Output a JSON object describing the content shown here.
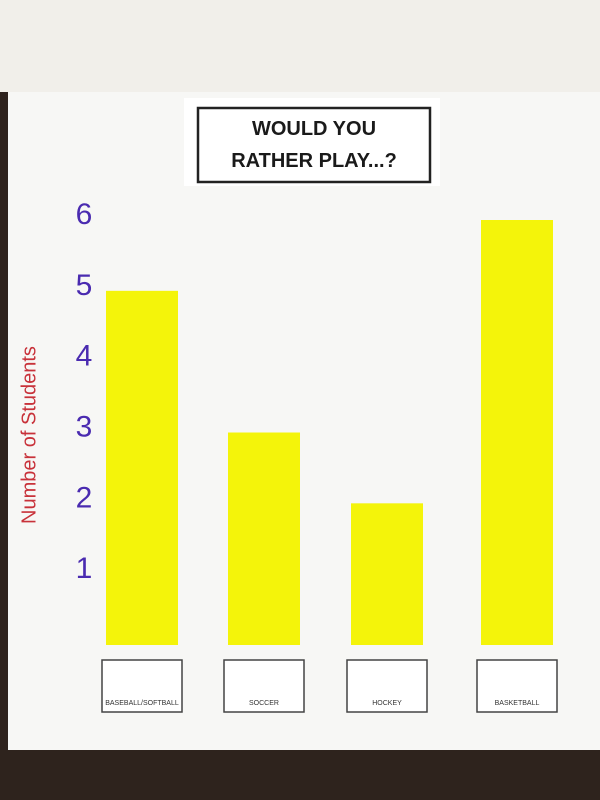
{
  "chart_data": {
    "type": "bar",
    "title": "WOULD YOU RATHER PLAY...?",
    "y_label": "Number of Students",
    "categories": [
      "BASEBALL/SOFTBALL",
      "SOCCER",
      "HOCKEY",
      "BASKETBALL"
    ],
    "values": [
      5,
      3,
      2,
      6
    ],
    "color": "#f4f40a",
    "ylim": [
      0,
      6
    ],
    "yticks": [
      1,
      2,
      3,
      4,
      5,
      6
    ],
    "grid": false
  }
}
